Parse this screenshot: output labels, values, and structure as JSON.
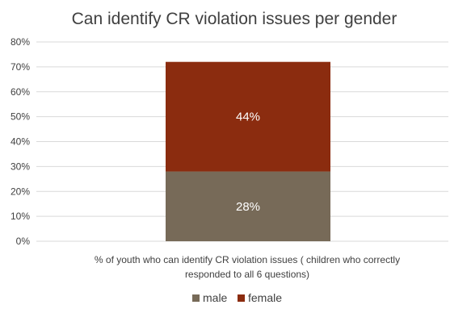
{
  "chart_data": {
    "type": "bar",
    "stacked": true,
    "title": "Can identify CR violation issues per gender",
    "categories": [
      "% of youth who can identify CR violation issues ( children who correctly responded to all 6 questions)"
    ],
    "category_lines": [
      "% of youth who can identify CR violation issues ( children who correctly",
      "responded to all 6 questions)"
    ],
    "series": [
      {
        "name": "male",
        "values": [
          28
        ],
        "label": "28%",
        "color": "#776a58"
      },
      {
        "name": "female",
        "values": [
          44
        ],
        "label": "44%",
        "color": "#8b2c0f"
      }
    ],
    "ylim": [
      0,
      80
    ],
    "yticks": [
      "0%",
      "10%",
      "20%",
      "30%",
      "40%",
      "50%",
      "60%",
      "70%",
      "80%"
    ],
    "grid": true,
    "legend_position": "bottom"
  }
}
